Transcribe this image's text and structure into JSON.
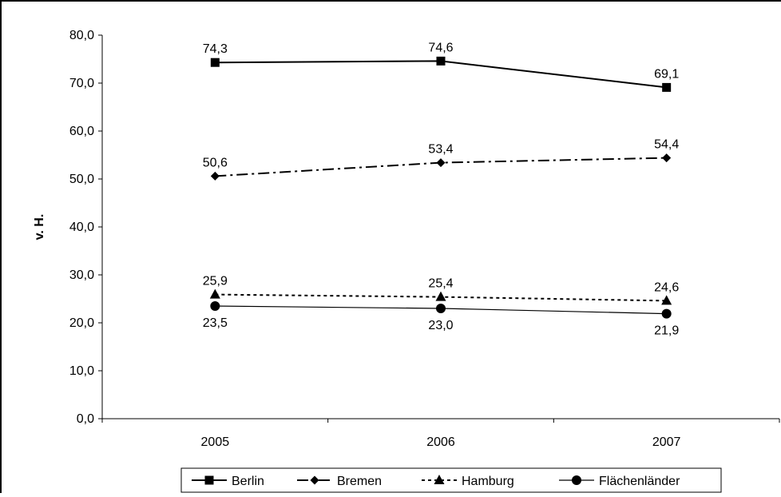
{
  "chart_data": {
    "type": "line",
    "title": "",
    "xlabel": "",
    "ylabel": "v. H.",
    "categories": [
      "2005",
      "2006",
      "2007"
    ],
    "ylim": [
      0,
      80
    ],
    "ytick_step": 10,
    "ytick_labels": [
      "0,0",
      "10,0",
      "20,0",
      "30,0",
      "40,0",
      "50,0",
      "60,0",
      "70,0",
      "80,0"
    ],
    "grid": false,
    "legend_position": "bottom",
    "series": [
      {
        "name": "Berlin",
        "values": [
          74.3,
          74.6,
          69.1
        ],
        "labels": [
          "74,3",
          "74,6",
          "69,1"
        ],
        "marker": "square",
        "line_style": "solid",
        "line_weight": "bold",
        "label_position": "above"
      },
      {
        "name": "Bremen",
        "values": [
          50.6,
          53.4,
          54.4
        ],
        "labels": [
          "50,6",
          "53,4",
          "54,4"
        ],
        "marker": "diamond",
        "line_style": "dash-dot",
        "line_weight": "bold",
        "label_position": "above"
      },
      {
        "name": "Hamburg",
        "values": [
          25.9,
          25.4,
          24.6
        ],
        "labels": [
          "25,9",
          "25,4",
          "24,6"
        ],
        "marker": "triangle",
        "line_style": "dotted",
        "line_weight": "bold",
        "label_position": "above"
      },
      {
        "name": "Flächenländer",
        "values": [
          23.5,
          23.0,
          21.9
        ],
        "labels": [
          "23,5",
          "23,0",
          "21,9"
        ],
        "marker": "circle",
        "line_style": "solid",
        "line_weight": "normal",
        "label_position": "below"
      }
    ]
  }
}
